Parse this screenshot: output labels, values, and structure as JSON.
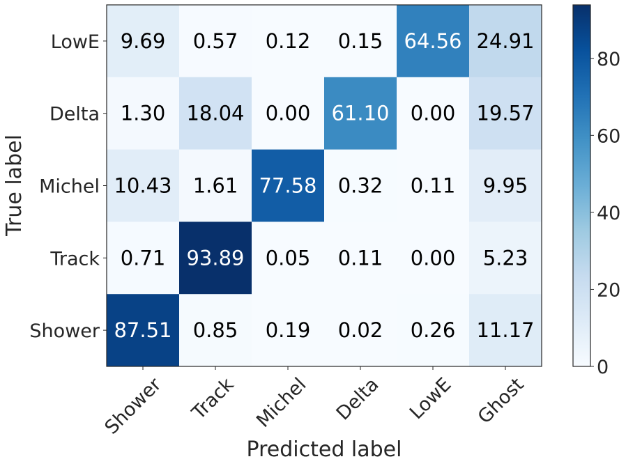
{
  "chart_data": {
    "type": "heatmap",
    "title": "",
    "xlabel": "Predicted label",
    "ylabel": "True label",
    "x_categories": [
      "Shower",
      "Track",
      "Michel",
      "Delta",
      "LowE",
      "Ghost"
    ],
    "y_categories": [
      "LowE",
      "Delta",
      "Michel",
      "Track",
      "Shower"
    ],
    "values": [
      [
        9.69,
        0.57,
        0.12,
        0.15,
        64.56,
        24.91
      ],
      [
        1.3,
        18.04,
        0.0,
        61.1,
        0.0,
        19.57
      ],
      [
        10.43,
        1.61,
        77.58,
        0.32,
        0.11,
        9.95
      ],
      [
        0.71,
        93.89,
        0.05,
        0.11,
        0.0,
        5.23
      ],
      [
        87.51,
        0.85,
        0.19,
        0.02,
        0.26,
        11.17
      ]
    ],
    "value_labels": [
      [
        "9.69",
        "0.57",
        "0.12",
        "0.15",
        "64.56",
        "24.91"
      ],
      [
        "1.30",
        "18.04",
        "0.00",
        "61.10",
        "0.00",
        "19.57"
      ],
      [
        "10.43",
        "1.61",
        "77.58",
        "0.32",
        "0.11",
        "9.95"
      ],
      [
        "0.71",
        "93.89",
        "0.05",
        "0.11",
        "0.00",
        "5.23"
      ],
      [
        "87.51",
        "0.85",
        "0.19",
        "0.02",
        "0.26",
        "11.17"
      ]
    ],
    "colormap": "Blues",
    "colorbar": {
      "range": [
        0,
        93.89
      ],
      "ticks": [
        0,
        20,
        40,
        60,
        80
      ],
      "tick_labels": [
        "0",
        "20",
        "40",
        "60",
        "80"
      ]
    },
    "grid": false
  }
}
